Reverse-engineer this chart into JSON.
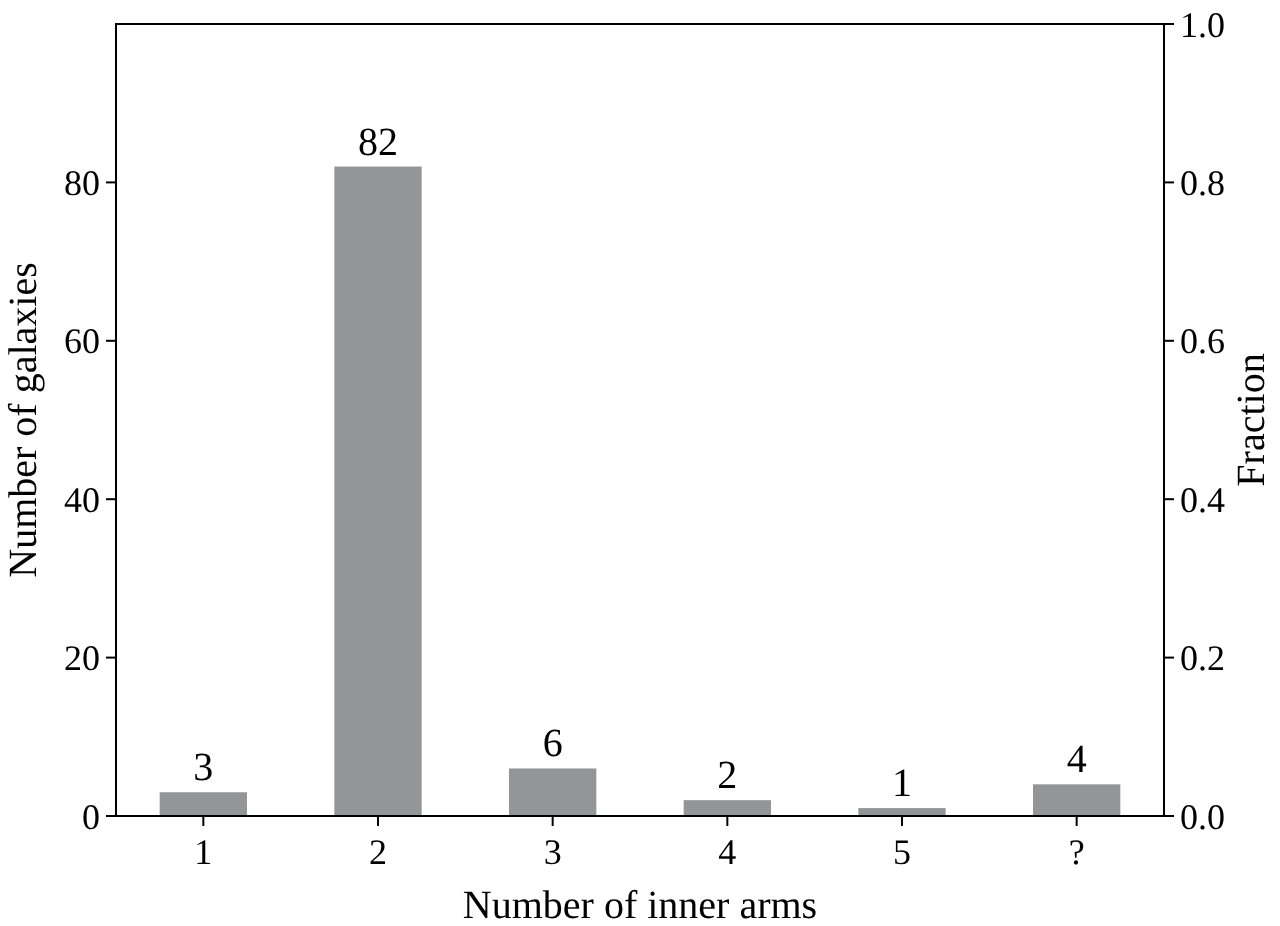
{
  "chart_data": {
    "type": "bar",
    "xlabel": "Number of inner arms",
    "ylabel": "Number of galaxies",
    "y2label": "Fraction",
    "categories": [
      "1",
      "2",
      "3",
      "4",
      "5",
      "?"
    ],
    "values": [
      3,
      82,
      6,
      2,
      1,
      4
    ],
    "color": "#939598",
    "ylim": [
      0,
      100
    ],
    "yticks": [
      0,
      20,
      40,
      60,
      80
    ],
    "y2lim": [
      0,
      1
    ],
    "y2ticks": [
      {
        "value": 0,
        "label": "0.0"
      },
      {
        "value": 0.2,
        "label": "0.2"
      },
      {
        "value": 0.4,
        "label": "0.4"
      },
      {
        "value": 0.6,
        "label": "0.6"
      },
      {
        "value": 0.8,
        "label": "0.8"
      },
      {
        "value": 1,
        "label": "1.0"
      }
    ],
    "data_labels": true,
    "grid": false
  }
}
